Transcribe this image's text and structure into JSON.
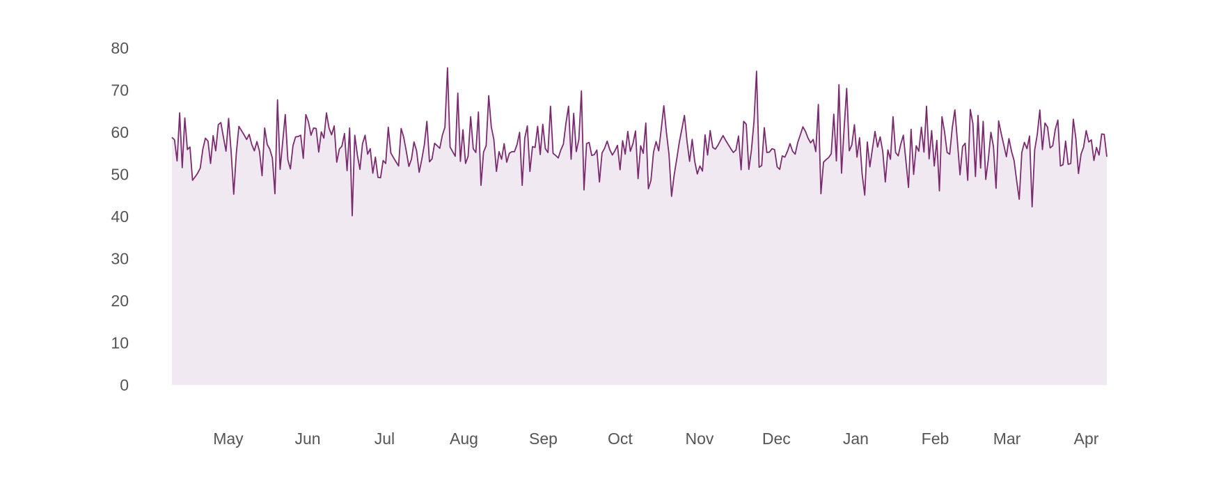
{
  "colors": {
    "line": "#7a2a6e",
    "area": "#f1e9f1",
    "tick_text": "#555555",
    "background": "#ffffff"
  },
  "chart_data": {
    "type": "area",
    "title": "",
    "xlabel": "",
    "ylabel": "",
    "ylim": [
      0,
      80
    ],
    "yticks": [
      0,
      10,
      20,
      30,
      40,
      50,
      60,
      70,
      80
    ],
    "xlim": [
      0,
      365
    ],
    "grid": false,
    "legend": "none",
    "month_ticks": [
      {
        "label": "May",
        "x": 22
      },
      {
        "label": "Jun",
        "x": 53
      },
      {
        "label": "Jul",
        "x": 83
      },
      {
        "label": "Aug",
        "x": 114
      },
      {
        "label": "Sep",
        "x": 145
      },
      {
        "label": "Oct",
        "x": 175
      },
      {
        "label": "Nov",
        "x": 206
      },
      {
        "label": "Dec",
        "x": 236
      },
      {
        "label": "Jan",
        "x": 267
      },
      {
        "label": "Feb",
        "x": 298
      },
      {
        "label": "Mar",
        "x": 326
      },
      {
        "label": "Apr",
        "x": 357
      }
    ],
    "series": [
      {
        "values": [
          58.8,
          58.2,
          53.2,
          64.6,
          51.6,
          63.4,
          55.9,
          56.5,
          48.6,
          49.4,
          50.3,
          51.5,
          56.0,
          58.6,
          57.9,
          52.6,
          59.2,
          55.6,
          61.8,
          62.3,
          58.8,
          55.5,
          63.3,
          55.3,
          45.3,
          55.0,
          61.4,
          60.4,
          59.4,
          58.3,
          59.5,
          57.1,
          55.6,
          57.8,
          55.5,
          49.7,
          61.0,
          57.1,
          56.0,
          53.9,
          45.4,
          67.7,
          51.2,
          57.7,
          64.2,
          53.5,
          51.3,
          56.8,
          58.9,
          59.0,
          59.3,
          53.8,
          64.2,
          62.5,
          59.3,
          61.0,
          60.9,
          55.3,
          60.1,
          58.6,
          64.6,
          61.0,
          59.4,
          61.5,
          52.9,
          56.0,
          56.7,
          59.7,
          50.9,
          61.0,
          40.2,
          59.3,
          54.6,
          51.2,
          57.3,
          59.3,
          54.8,
          56.1,
          50.3,
          54.1,
          49.3,
          49.2,
          53.3,
          52.6,
          61.2,
          55.1,
          54.0,
          53.0,
          52.0,
          60.9,
          58.8,
          55.5,
          51.9,
          53.6,
          57.7,
          55.6,
          50.5,
          53.5,
          57.0,
          62.6,
          53.0,
          53.7,
          57.4,
          56.8,
          56.2,
          59.3,
          61.2,
          75.3,
          56.5,
          55.4,
          54.3,
          69.3,
          53.1,
          60.6,
          52.6,
          54.3,
          63.7,
          56.1,
          55.2,
          64.8,
          47.4,
          55.3,
          56.8,
          68.7,
          61.3,
          58.3,
          50.7,
          55.4,
          53.6,
          57.3,
          52.9,
          55.0,
          55.4,
          55.4,
          57.1,
          60.0,
          47.4,
          58.6,
          61.5,
          50.7,
          56.6,
          56.4,
          61.4,
          54.7,
          61.9,
          56.1,
          55.2,
          66.2,
          55.0,
          54.5,
          53.9,
          55.8,
          57.2,
          62.2,
          66.2,
          53.6,
          64.5,
          55.4,
          58.3,
          69.8,
          46.3,
          57.3,
          57.6,
          54.5,
          54.7,
          55.8,
          48.2,
          55.1,
          56.2,
          57.9,
          55.9,
          54.6,
          55.6,
          56.9,
          51.1,
          58.0,
          54.8,
          60.2,
          55.5,
          57.3,
          60.3,
          49.0,
          56.8,
          55.0,
          62.2,
          46.6,
          48.6,
          55.3,
          57.8,
          55.6,
          60.8,
          66.3,
          60.0,
          54.8,
          44.8,
          49.8,
          53.6,
          57.6,
          60.8,
          64.0,
          57.9,
          53.1,
          58.3,
          53.1,
          50.1,
          52.0,
          50.8,
          59.4,
          54.6,
          60.4,
          56.4,
          56.0,
          56.9,
          58.1,
          59.2,
          58.1,
          57.1,
          56.1,
          55.2,
          55.8,
          59.1,
          51.1,
          62.6,
          61.9,
          51.2,
          55.7,
          62.5,
          74.5,
          51.7,
          52.1,
          61.1,
          55.2,
          55.3,
          56.1,
          55.9,
          51.8,
          51.2,
          54.4,
          54.1,
          55.5,
          57.3,
          55.5,
          54.8,
          57.6,
          59.4,
          61.3,
          60.2,
          58.6,
          57.5,
          58.3,
          55.4,
          66.6,
          45.4,
          52.9,
          53.5,
          54.0,
          54.9,
          64.3,
          53.2,
          71.3,
          50.3,
          60.9,
          70.4,
          55.6,
          57.0,
          61.8,
          54.1,
          58.7,
          50.1,
          45.1,
          57.7,
          51.8,
          56.1,
          60.2,
          56.5,
          58.9,
          55.5,
          48.2,
          55.8,
          53.6,
          63.7,
          55.2,
          54.4,
          57.2,
          59.3,
          53.2,
          46.9,
          60.7,
          50.0,
          56.8,
          55.5,
          61.2,
          55.3,
          66.2,
          53.7,
          60.4,
          52.0,
          58.1,
          46.1,
          63.7,
          60.1,
          55.2,
          54.8,
          61.1,
          65.3,
          57.8,
          49.9,
          56.6,
          57.4,
          48.6,
          65.4,
          62.1,
          49.5,
          64.0,
          51.5,
          62.6,
          48.8,
          53.6,
          60.0,
          56.6,
          46.7,
          62.7,
          59.7,
          57.0,
          54.2,
          58.5,
          55.5,
          53.3,
          48.5,
          44.1,
          55.2,
          57.6,
          56.1,
          59.1,
          42.3,
          55.8,
          59.5,
          65.3,
          55.9,
          62.2,
          61.2,
          56.3,
          56.8,
          60.7,
          62.9,
          52.0,
          52.3,
          57.9,
          52.4,
          52.6,
          63.1,
          58.5,
          50.2,
          54.8,
          56.5,
          60.4,
          57.7,
          58.2,
          53.3,
          56.4,
          54.6,
          59.6,
          59.5,
          54.2
        ]
      }
    ]
  }
}
